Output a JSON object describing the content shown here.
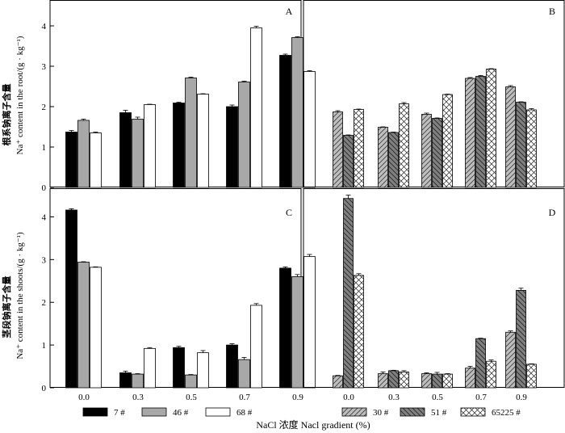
{
  "figure": {
    "xlabel": "NaCl 浓度 Nacl gradient (%)",
    "ylabel_top_cn": "根系钠离子含量",
    "ylabel_top_en": "Na⁺ content in the root/(g · kg⁻¹)",
    "ylabel_bottom_cn": "茎段钠离子含量",
    "ylabel_bottom_en": "Na⁺ content in the shoots/(g · kg⁻¹)"
  },
  "colors": {
    "s7": "#000000",
    "s46": "#a8a8a8",
    "s68": "#ffffff",
    "s30": "#bdbdbd",
    "s51": "#7f7f7f",
    "s65225": "#ffffff"
  },
  "chart_data": [
    {
      "type": "bar",
      "panel": "A",
      "label": "A",
      "categories": [
        "0.0",
        "0.3",
        "0.5",
        "0.7",
        "0.9"
      ],
      "ylim": [
        0,
        4.5
      ],
      "yticks": [
        "0",
        "1",
        "2",
        "3",
        "4"
      ],
      "series": [
        {
          "name": "7 #",
          "values": [
            1.37,
            1.85,
            2.09,
            2.0,
            3.27
          ],
          "errors": [
            0.04,
            0.06,
            0.02,
            0.04,
            0.03
          ],
          "style": "s7"
        },
        {
          "name": "46 #",
          "values": [
            1.66,
            1.69,
            2.71,
            2.61,
            3.71
          ],
          "errors": [
            0.03,
            0.05,
            0.02,
            0.02,
            0.02
          ],
          "style": "s46"
        },
        {
          "name": "68 #",
          "values": [
            1.35,
            2.05,
            2.31,
            3.95,
            2.87
          ],
          "errors": [
            0.02,
            0.01,
            0.01,
            0.04,
            0.02
          ],
          "style": "s68"
        }
      ]
    },
    {
      "type": "bar",
      "panel": "B",
      "label": "B",
      "categories": [
        "0.0",
        "0.3",
        "0.5",
        "0.7",
        "0.9"
      ],
      "ylim": [
        0,
        4.5
      ],
      "yticks": [],
      "series": [
        {
          "name": "30 #",
          "values": [
            1.87,
            1.49,
            1.81,
            2.7,
            2.49
          ],
          "errors": [
            0.03,
            0.01,
            0.03,
            0.02,
            0.03
          ],
          "style": "s30"
        },
        {
          "name": "51 #",
          "values": [
            1.29,
            1.36,
            1.71,
            2.75,
            2.11
          ],
          "errors": [
            0.01,
            0.01,
            0.01,
            0.02,
            0.01
          ],
          "style": "s51"
        },
        {
          "name": "65225 #",
          "values": [
            1.93,
            2.07,
            2.3,
            2.93,
            1.92
          ],
          "errors": [
            0.01,
            0.03,
            0.01,
            0.01,
            0.03
          ],
          "style": "s65225"
        }
      ]
    },
    {
      "type": "bar",
      "panel": "C",
      "label": "C",
      "categories": [
        "0.0",
        "0.3",
        "0.5",
        "0.7",
        "0.9"
      ],
      "ylim": [
        0,
        4.5
      ],
      "yticks": [
        "0",
        "1",
        "2",
        "3",
        "4"
      ],
      "series": [
        {
          "name": "7 #",
          "values": [
            4.16,
            0.35,
            0.94,
            1.0,
            2.8
          ],
          "errors": [
            0.03,
            0.04,
            0.03,
            0.03,
            0.03
          ],
          "style": "s7"
        },
        {
          "name": "46 #",
          "values": [
            2.94,
            0.32,
            0.3,
            0.66,
            2.6
          ],
          "errors": [
            0.01,
            0.01,
            0.01,
            0.05,
            0.05
          ],
          "style": "s46"
        },
        {
          "name": "68 #",
          "values": [
            2.82,
            0.92,
            0.82,
            1.93,
            3.07
          ],
          "errors": [
            0.01,
            0.02,
            0.05,
            0.04,
            0.05
          ],
          "style": "s68"
        }
      ]
    },
    {
      "type": "bar",
      "panel": "D",
      "label": "D",
      "categories": [
        "0.0",
        "0.3",
        "0.5",
        "0.7",
        "0.9"
      ],
      "ylim": [
        0,
        4.5
      ],
      "yticks": [],
      "series": [
        {
          "name": "30 #",
          "values": [
            0.28,
            0.33,
            0.33,
            0.46,
            1.3
          ],
          "errors": [
            0.01,
            0.04,
            0.02,
            0.04,
            0.03
          ],
          "style": "s30"
        },
        {
          "name": "51 #",
          "values": [
            4.43,
            0.4,
            0.32,
            1.15,
            2.28
          ],
          "errors": [
            0.08,
            0.01,
            0.04,
            0.01,
            0.05
          ],
          "style": "s51"
        },
        {
          "name": "65225 #",
          "values": [
            2.63,
            0.37,
            0.32,
            0.62,
            0.55
          ],
          "errors": [
            0.04,
            0.03,
            0.01,
            0.03,
            0.01
          ],
          "style": "s65225"
        }
      ]
    }
  ],
  "legend_left": [
    {
      "name": "7 #",
      "style": "s7"
    },
    {
      "name": "46 #",
      "style": "s46"
    },
    {
      "name": "68 #",
      "style": "s68"
    }
  ],
  "legend_right": [
    {
      "name": "30 #",
      "style": "s30"
    },
    {
      "name": "51 #",
      "style": "s51"
    },
    {
      "name": "65225 #",
      "style": "s65225"
    }
  ]
}
